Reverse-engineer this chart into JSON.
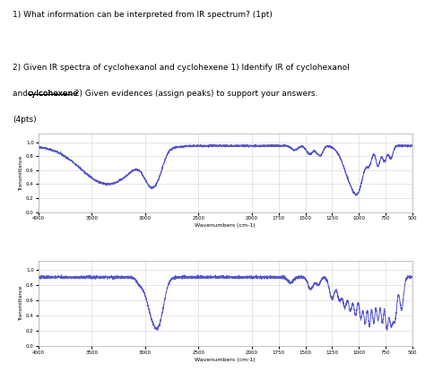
{
  "title1": "1) What information can be interpreted from IR spectrum? (1pt)",
  "line2a": "2) Given IR spectra of cyclohexanol and cyclohexene 1) Identify IR of cyclohexanol",
  "line2b_pre": "and ",
  "line2b_underline": "cylcohexene",
  "line2b_post": " 2) Given evidences (assign peaks) to support your answers.",
  "line2c": "(4pts)",
  "xlabel": "Wavenumbers (cm-1)",
  "ylabel": "Transmittance",
  "xlim_left": 4000,
  "xlim_right": 500,
  "line_color": "#5555cc",
  "bg_color": "#ffffff",
  "grid_color": "#cccccc",
  "text_color": "#000000",
  "xticks": [
    4000,
    3500,
    3000,
    2500,
    2000,
    1750,
    1500,
    1250,
    1000,
    750,
    500
  ],
  "yticks": [
    0.0,
    0.2,
    0.4,
    0.6,
    0.8,
    1.0
  ]
}
